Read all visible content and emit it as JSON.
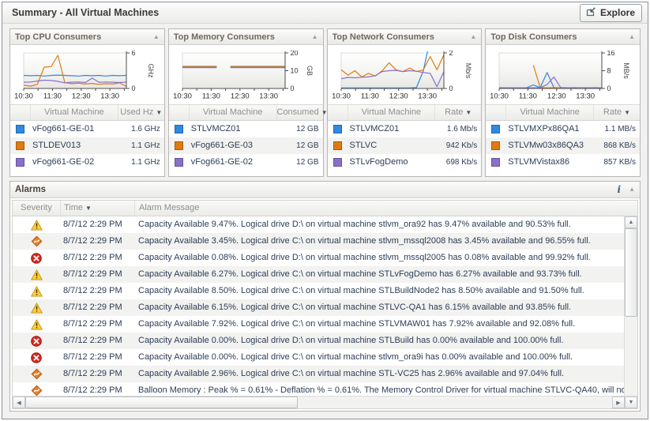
{
  "window": {
    "title": "Summary - All Virtual Machines",
    "explore_label": "Explore"
  },
  "panels": [
    {
      "id": "cpu",
      "title": "Top CPU Consumers",
      "vm_header": "Virtual Machine",
      "value_header": "Used Hz",
      "rows": [
        {
          "vm": "vFog661-GE-01",
          "value": "1.6 GHz",
          "color": "#2f8ae0"
        },
        {
          "vm": "STLDEV013",
          "value": "1.1 GHz",
          "color": "#e07a10"
        },
        {
          "vm": "vFog661-GE-02",
          "value": "1.1 GHz",
          "color": "#8a70cc"
        }
      ]
    },
    {
      "id": "memory",
      "title": "Top Memory Consumers",
      "vm_header": "Virtual Machine",
      "value_header": "Consumed",
      "rows": [
        {
          "vm": "STLVMCZ01",
          "value": "12 GB",
          "color": "#2f8ae0"
        },
        {
          "vm": "vFog661-GE-03",
          "value": "12 GB",
          "color": "#e07a10"
        },
        {
          "vm": "vFog661-GE-02",
          "value": "12 GB",
          "color": "#8a70cc"
        }
      ]
    },
    {
      "id": "network",
      "title": "Top Network Consumers",
      "vm_header": "Virtual Machine",
      "value_header": "Rate",
      "rows": [
        {
          "vm": "STLVMCZ01",
          "value": "1.6 Mb/s",
          "color": "#2f8ae0"
        },
        {
          "vm": "STLVC",
          "value": "942 Kb/s",
          "color": "#e07a10"
        },
        {
          "vm": "STLvFogDemo",
          "value": "698 Kb/s",
          "color": "#8a70cc"
        }
      ]
    },
    {
      "id": "disk",
      "title": "Top Disk Consumers",
      "vm_header": "Virtual Machine",
      "value_header": "Rate",
      "rows": [
        {
          "vm": "STLVMXPx86QA1",
          "value": "1.1 MB/s",
          "color": "#2f8ae0"
        },
        {
          "vm": "STLVMw03x86QA3",
          "value": "868 KB/s",
          "color": "#e07a10"
        },
        {
          "vm": "STLVMVistax86",
          "value": "857 KB/s",
          "color": "#8a70cc"
        }
      ]
    }
  ],
  "chart_data": [
    {
      "type": "line",
      "title": "Top CPU Consumers",
      "ylabel": "GHz",
      "ylim": [
        0,
        6
      ],
      "yticks": [
        0,
        6
      ],
      "x_ticks": [
        "10:30",
        "11:30",
        "12:30",
        "13:30"
      ],
      "legend_position": "none",
      "grid": false,
      "series": [
        {
          "name": "vFog661-GE-01",
          "color": "#2f8ae0",
          "values": [
            2.2,
            2.15,
            2.2,
            2.1,
            2.2,
            2.25,
            2.2,
            2.15,
            2.1,
            2.2,
            2.15,
            2.2,
            2.1,
            2.2,
            2.15,
            2.2
          ]
        },
        {
          "name": "STLDEV013",
          "color": "#e07a10",
          "values": [
            0.55,
            0.4,
            0.7,
            3.6,
            3.7,
            5.6,
            1.0,
            0.8,
            0.9,
            0.75,
            0.85,
            0.7,
            0.8,
            0.75,
            0.95,
            0.35
          ]
        },
        {
          "name": "vFog661-GE-02",
          "color": "#8a70cc",
          "values": [
            1.05,
            1.1,
            1.25,
            1.4,
            1.35,
            1.2,
            0.95,
            1.05,
            1.1,
            1.0,
            1.75,
            1.05,
            1.1,
            1.05,
            1.0,
            1.1
          ]
        }
      ]
    },
    {
      "type": "line",
      "title": "Top Memory Consumers",
      "ylabel": "GB",
      "ylim": [
        0,
        20
      ],
      "yticks": [
        0,
        10,
        20
      ],
      "x_ticks": [
        "10:30",
        "11:30",
        "12:30",
        "13:30"
      ],
      "legend_position": "none",
      "grid": false,
      "series": [
        {
          "name": "STLVMCZ01",
          "color": "#2f8ae0",
          "values": [
            12.2,
            12.2,
            12.2,
            12.2,
            12.2,
            12.2,
            null,
            12.2,
            12.2,
            12.2,
            12.2,
            12.2,
            12.2,
            12.2,
            12.2,
            12.2
          ]
        },
        {
          "name": "vFog661-GE-03",
          "color": "#e07a10",
          "values": [
            12.45,
            12.45,
            12.45,
            12.45,
            12.45,
            12.45,
            null,
            12.45,
            12.45,
            12.45,
            12.45,
            12.45,
            12.45,
            12.45,
            12.45,
            12.45
          ]
        },
        {
          "name": "vFog661-GE-02",
          "color": "#8a70cc",
          "values": [
            11.75,
            11.75,
            11.75,
            11.75,
            11.75,
            11.75,
            null,
            11.75,
            11.75,
            11.75,
            11.75,
            11.75,
            11.75,
            11.75,
            11.75,
            11.75
          ]
        }
      ]
    },
    {
      "type": "line",
      "title": "Top Network Consumers",
      "ylabel": "Mb/s",
      "ylim": [
        0,
        2
      ],
      "yticks": [
        0,
        2
      ],
      "x_ticks": [
        "10:30",
        "11:30",
        "12:30",
        "13:30"
      ],
      "legend_position": "none",
      "grid": false,
      "series": [
        {
          "name": "STLVMCZ01",
          "color": "#2f8ae0",
          "values": [
            0.03,
            0.03,
            0.03,
            0.03,
            0.03,
            0.03,
            0.03,
            0.03,
            0.03,
            0.03,
            0.03,
            0.05,
            1.0,
            2.8,
            4.0,
            4.8
          ]
        },
        {
          "name": "STLVC",
          "color": "#e07a10",
          "values": [
            1.05,
            0.75,
            1.0,
            0.65,
            0.85,
            0.7,
            1.0,
            1.45,
            1.05,
            0.95,
            1.15,
            0.95,
            1.05,
            1.8,
            1.05,
            1.9
          ]
        },
        {
          "name": "STLvFogDemo",
          "color": "#8a70cc",
          "values": [
            0.55,
            0.62,
            0.6,
            0.63,
            0.65,
            0.72,
            0.95,
            1.0,
            1.02,
            0.95,
            1.0,
            0.97,
            0.9,
            0.85,
            0.1,
            0.95
          ]
        }
      ]
    },
    {
      "type": "line",
      "title": "Top Disk Consumers",
      "ylabel": "MB/s",
      "ylim": [
        0,
        16
      ],
      "yticks": [
        0,
        8,
        16
      ],
      "x_ticks": [
        "10:30",
        "11:30",
        "12:30",
        "13:30"
      ],
      "legend_position": "none",
      "grid": false,
      "series": [
        {
          "name": "STLVMXPx86QA1",
          "color": "#2f8ae0",
          "values": [
            0.3,
            0.25,
            0.3,
            0.25,
            0.3,
            1.6,
            0.4,
            7.2,
            0.4,
            0.3,
            0.25,
            0.3,
            0.25,
            0.3,
            0.25,
            0.3
          ]
        },
        {
          "name": "STLVMw03x86QA3",
          "color": "#e07a10",
          "values": [
            null,
            null,
            null,
            null,
            null,
            10.5,
            0.4,
            0.3,
            0.35,
            0.3,
            0.3,
            0.35,
            0.3,
            0.3,
            0.35,
            0.3
          ]
        },
        {
          "name": "STLVMVistax86",
          "color": "#8a70cc",
          "values": [
            0.3,
            0.3,
            0.25,
            0.3,
            0.25,
            0.3,
            0.35,
            1.8,
            5.2,
            0.4,
            0.3,
            0.25,
            0.3,
            0.25,
            0.3,
            0.25
          ]
        }
      ]
    }
  ],
  "alarms": {
    "title": "Alarms",
    "columns": {
      "severity": "Severity",
      "time": "Time",
      "message": "Alarm Message"
    },
    "rows": [
      {
        "severity": "warning",
        "time": "8/7/12 2:29 PM",
        "message": "Capacity Available 9.47%. Logical drive D:\\ on virtual machine stlvm_ora92 has 9.47% available and 90.53% full."
      },
      {
        "severity": "critical",
        "time": "8/7/12 2:29 PM",
        "message": "Capacity Available 3.45%. Logical drive C:\\ on virtual machine stlvm_mssql2008 has 3.45% available and 96.55% full."
      },
      {
        "severity": "fatal",
        "time": "8/7/12 2:29 PM",
        "message": "Capacity Available 0.08%. Logical drive D:\\ on virtual machine stlvm_mssql2005 has 0.08% available and 99.92% full."
      },
      {
        "severity": "warning",
        "time": "8/7/12 2:29 PM",
        "message": "Capacity Available 6.27%. Logical drive C:\\ on virtual machine STLvFogDemo has 6.27% available and 93.73% full."
      },
      {
        "severity": "warning",
        "time": "8/7/12 2:29 PM",
        "message": "Capacity Available 8.50%. Logical drive C:\\ on virtual machine STLBuildNode2 has 8.50% available and 91.50% full."
      },
      {
        "severity": "warning",
        "time": "8/7/12 2:29 PM",
        "message": "Capacity Available 6.15%. Logical drive C:\\ on virtual machine STLVC-QA1 has 6.15% available and 93.85% full."
      },
      {
        "severity": "warning",
        "time": "8/7/12 2:29 PM",
        "message": "Capacity Available 7.92%. Logical drive C:\\ on virtual machine STLVMAW01 has 7.92% available and 92.08% full."
      },
      {
        "severity": "fatal",
        "time": "8/7/12 2:29 PM",
        "message": "Capacity Available 0.00%. Logical drive D:\\ on virtual machine STLBuild has 0.00% available and 100.00% full."
      },
      {
        "severity": "fatal",
        "time": "8/7/12 2:29 PM",
        "message": "Capacity Available 0.00%. Logical drive C:\\ on virtual machine stlvm_ora9i has 0.00% available and 100.00% full."
      },
      {
        "severity": "critical",
        "time": "8/7/12 2:29 PM",
        "message": "Capacity Available 2.96%. Logical drive C:\\ on virtual machine STL-VC25 has 2.96% available and 97.04% full."
      },
      {
        "severity": "critical",
        "time": "8/7/12 2:29 PM",
        "message": "Balloon Memory : Peak % = 0.61% - Deflation % = 0.61%. The Memory Control Driver for virtual machine STLVC-QA40, will not"
      }
    ]
  }
}
